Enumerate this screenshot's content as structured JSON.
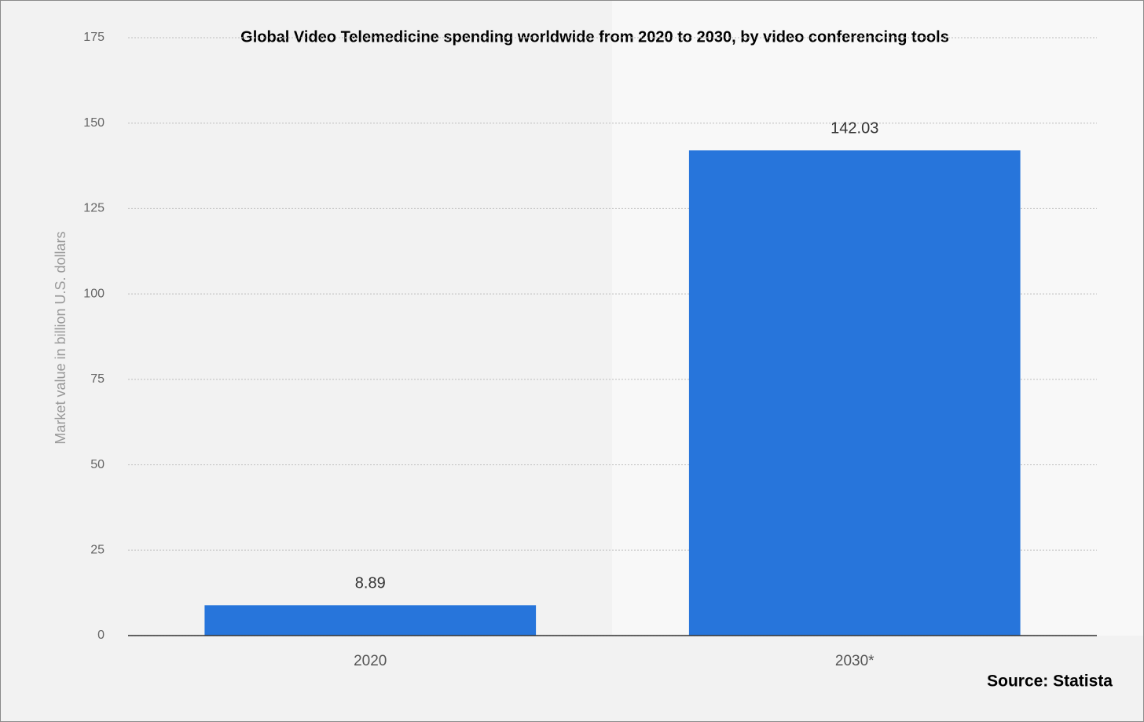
{
  "chart_data": {
    "type": "bar",
    "title": "Global Video Telemedicine spending worldwide from 2020 to 2030, by video conferencing tools",
    "y_label": "Market value in billion U.S. dollars",
    "source": "Source: Statista",
    "categories": [
      "2020",
      "2030*"
    ],
    "values": [
      8.89,
      142.03
    ],
    "color": "#2775db",
    "ylim": [
      0,
      175
    ],
    "yticks": [
      0,
      25,
      50,
      75,
      100,
      125,
      150,
      175
    ],
    "grid": true
  }
}
